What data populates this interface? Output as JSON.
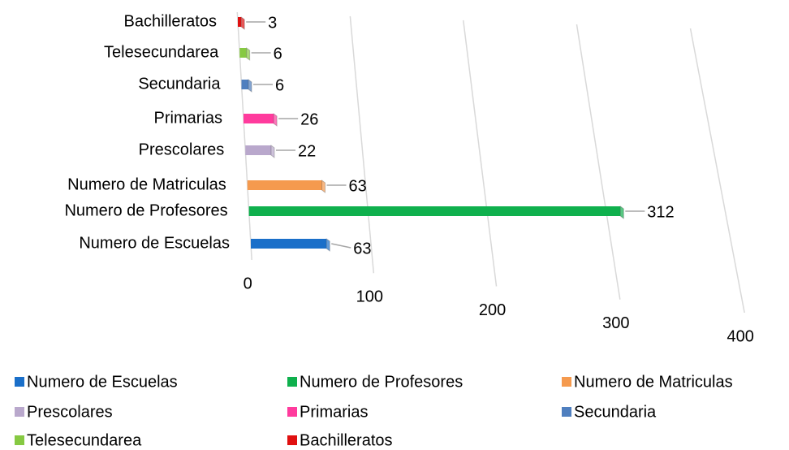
{
  "chart_data": {
    "type": "bar",
    "categories": [
      "Numero de Escuelas",
      "Numero de Profesores",
      "Numero de Matriculas",
      "Prescolares",
      "Primarias",
      "Secundaria",
      "Telesecundarea",
      "Bachilleratos"
    ],
    "values": [
      63,
      312,
      63,
      22,
      26,
      6,
      6,
      3
    ],
    "colors": [
      "#1a6fc9",
      "#0fb04d",
      "#f59a4e",
      "#b9a8cc",
      "#ff3b9d",
      "#4f7fbf",
      "#86c942",
      "#e01010"
    ],
    "xlim": [
      0,
      400
    ],
    "xticks": [
      0,
      100,
      200,
      300,
      400
    ],
    "grid": true
  }
}
